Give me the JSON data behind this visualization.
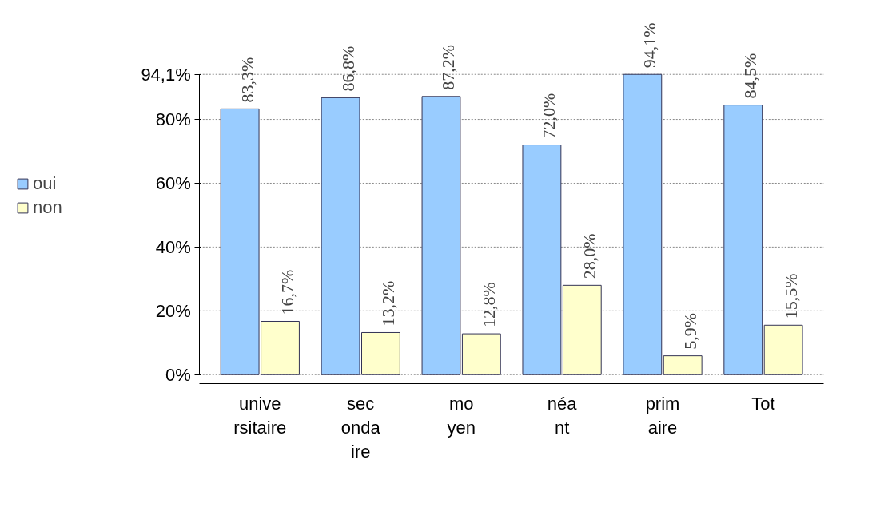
{
  "chart_data": {
    "type": "bar",
    "categories": [
      "unive\nrsitaire",
      "sec\nonda\nire",
      "mo\nyen",
      "néa\nnt",
      "prim\naire",
      "Tot"
    ],
    "series": [
      {
        "name": "oui",
        "color": "#99ccff",
        "values": [
          83.3,
          86.8,
          87.2,
          72.0,
          94.1,
          84.5
        ],
        "value_labels": [
          "83,3%",
          "86,8%",
          "87,2%",
          "72,0%",
          "94,1%",
          "84,5%"
        ]
      },
      {
        "name": "non",
        "color": "#ffffcc",
        "values": [
          16.7,
          13.2,
          12.8,
          28.0,
          5.9,
          15.5
        ],
        "value_labels": [
          "16,7%",
          "13,2%",
          "12,8%",
          "28,0%",
          "5,9%",
          "15,5%"
        ]
      }
    ],
    "ylim": [
      0,
      94.1
    ],
    "yticks": [
      {
        "value": 0,
        "label": "0%"
      },
      {
        "value": 20,
        "label": "20%"
      },
      {
        "value": 40,
        "label": "40%"
      },
      {
        "value": 60,
        "label": "60%"
      },
      {
        "value": 80,
        "label": "80%"
      },
      {
        "value": 94.1,
        "label": "94,1%"
      }
    ],
    "grid": "y",
    "legend": "left"
  }
}
